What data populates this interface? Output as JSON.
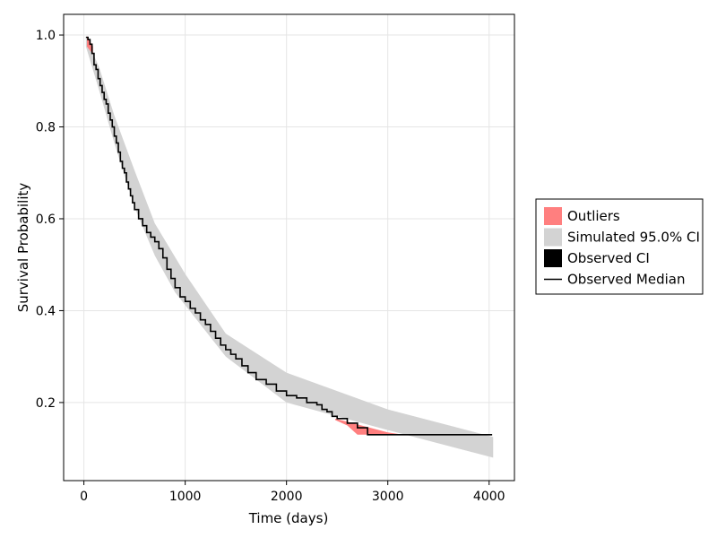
{
  "chart_data": {
    "type": "area",
    "xlabel": "Time (days)",
    "ylabel": "Survival Probability",
    "xlim": [
      -200,
      4250
    ],
    "ylim": [
      0.03,
      1.045
    ],
    "x_ticks": [
      0,
      1000,
      2000,
      3000,
      4000
    ],
    "x_tick_labels": [
      "0",
      "1000",
      "2000",
      "3000",
      "4000"
    ],
    "y_ticks": [
      0.2,
      0.4,
      0.6,
      0.8,
      1.0
    ],
    "y_tick_labels": [
      "0.2",
      "0.4",
      "0.6",
      "0.8",
      "1.0"
    ],
    "grid": true,
    "legend_position": "right",
    "legend": [
      {
        "label": "Outliers",
        "color": "#ff7f7f",
        "kind": "patch"
      },
      {
        "label": "Simulated 95.0% CI",
        "color": "#d3d3d3",
        "kind": "patch"
      },
      {
        "label": "Observed CI",
        "color": "#000000",
        "kind": "patch"
      },
      {
        "label": "Observed Median",
        "color": "#000000",
        "kind": "line"
      }
    ],
    "simulated_ci": {
      "upper": [
        [
          20,
          0.995
        ],
        [
          150,
          0.93
        ],
        [
          300,
          0.825
        ],
        [
          500,
          0.705
        ],
        [
          700,
          0.59
        ],
        [
          1000,
          0.48
        ],
        [
          1400,
          0.35
        ],
        [
          2000,
          0.265
        ],
        [
          3000,
          0.185
        ],
        [
          4040,
          0.125
        ]
      ],
      "lower": [
        [
          20,
          0.975
        ],
        [
          150,
          0.88
        ],
        [
          300,
          0.765
        ],
        [
          500,
          0.625
        ],
        [
          700,
          0.52
        ],
        [
          900,
          0.44
        ],
        [
          1400,
          0.3
        ],
        [
          2000,
          0.2
        ],
        [
          3000,
          0.14
        ],
        [
          4040,
          0.08
        ]
      ]
    },
    "outliers": [
      {
        "upper": [
          [
            30,
            0.998
          ],
          [
            90,
            0.975
          ]
        ],
        "lower": [
          [
            30,
            0.975
          ],
          [
            90,
            0.958
          ]
        ]
      },
      {
        "upper": [
          [
            2480,
            0.165
          ],
          [
            3000,
            0.135
          ],
          [
            3150,
            0.13
          ]
        ],
        "lower": [
          [
            2480,
            0.162
          ],
          [
            2600,
            0.15
          ],
          [
            2700,
            0.13
          ],
          [
            3150,
            0.13
          ]
        ]
      }
    ],
    "observed_median": {
      "x": [
        20,
        40,
        60,
        80,
        100,
        120,
        140,
        160,
        180,
        200,
        220,
        240,
        260,
        280,
        300,
        320,
        340,
        360,
        380,
        400,
        420,
        440,
        460,
        480,
        500,
        540,
        580,
        620,
        660,
        700,
        740,
        780,
        820,
        860,
        900,
        950,
        1000,
        1050,
        1100,
        1150,
        1200,
        1250,
        1300,
        1350,
        1400,
        1450,
        1500,
        1560,
        1620,
        1700,
        1800,
        1900,
        2000,
        2100,
        2200,
        2300,
        2350,
        2400,
        2450,
        2500,
        2600,
        2700,
        2800,
        3000,
        3500,
        4030
      ],
      "y": [
        0.995,
        0.99,
        0.98,
        0.96,
        0.935,
        0.925,
        0.905,
        0.89,
        0.875,
        0.86,
        0.85,
        0.83,
        0.815,
        0.8,
        0.78,
        0.765,
        0.745,
        0.725,
        0.71,
        0.7,
        0.68,
        0.665,
        0.65,
        0.635,
        0.62,
        0.6,
        0.585,
        0.57,
        0.56,
        0.55,
        0.535,
        0.515,
        0.49,
        0.47,
        0.45,
        0.43,
        0.42,
        0.405,
        0.395,
        0.38,
        0.37,
        0.355,
        0.34,
        0.325,
        0.315,
        0.305,
        0.295,
        0.28,
        0.265,
        0.25,
        0.24,
        0.225,
        0.215,
        0.21,
        0.2,
        0.195,
        0.185,
        0.18,
        0.17,
        0.165,
        0.155,
        0.145,
        0.13,
        0.13,
        0.13,
        0.13
      ]
    }
  }
}
